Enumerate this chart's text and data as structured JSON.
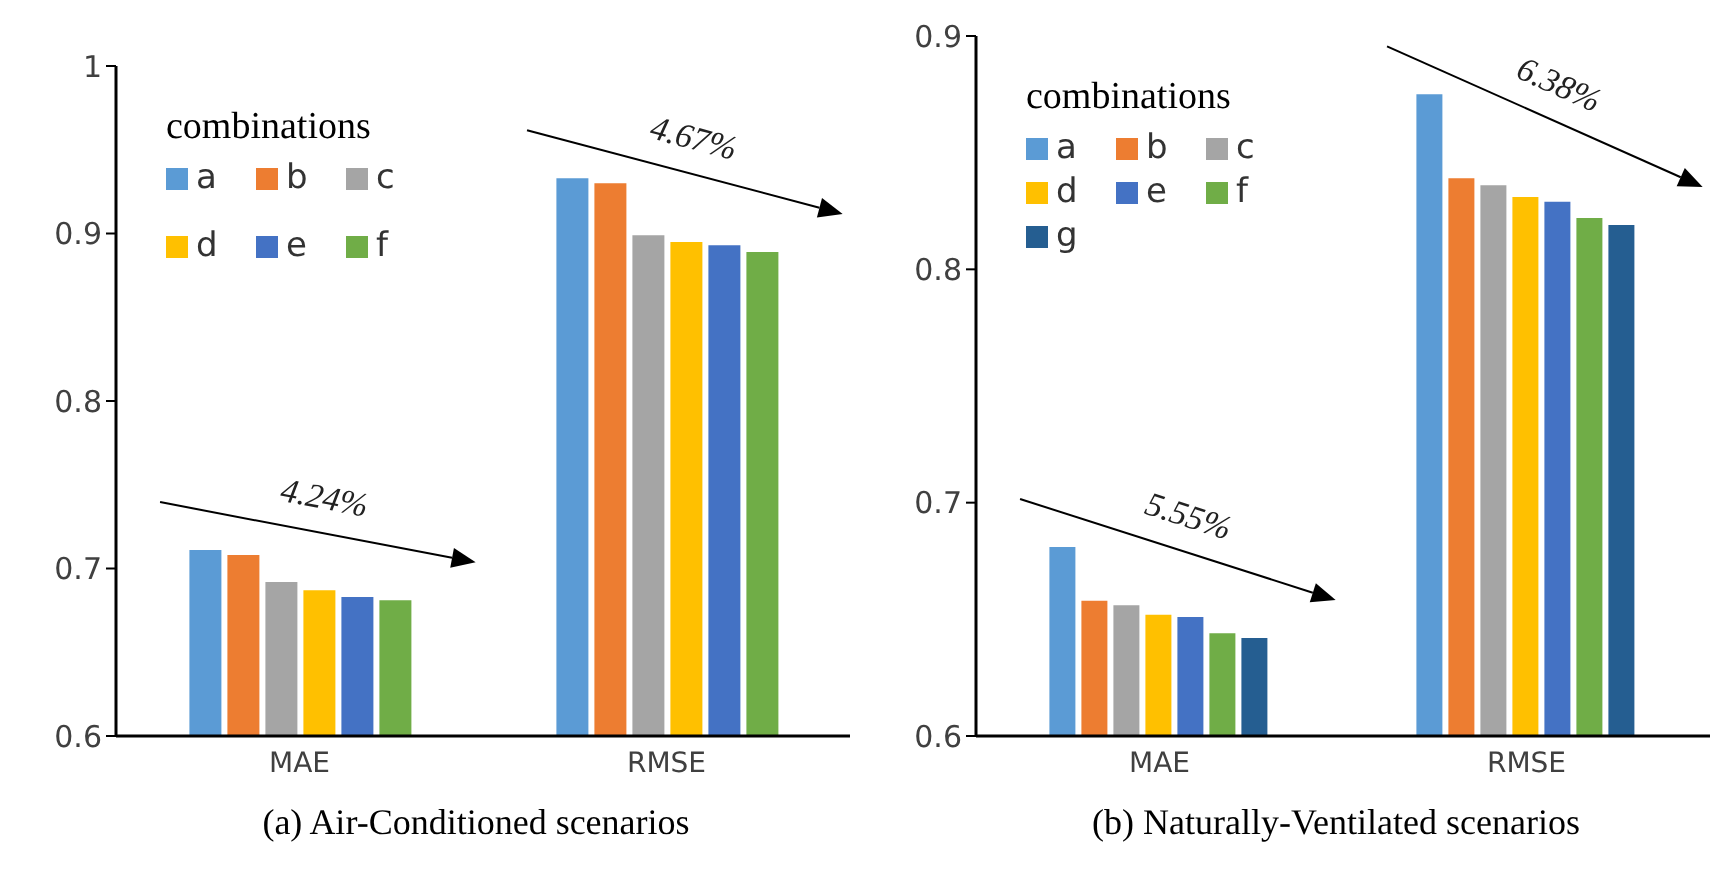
{
  "chart_data": [
    {
      "type": "bar",
      "title": "(a) Air-Conditioned scenarios",
      "categories": [
        "MAE",
        "RMSE"
      ],
      "legend": "top left",
      "legend_title": "combinations",
      "grid": false,
      "ylim": [
        0.6,
        1
      ],
      "yticks": [
        0.6,
        0.7,
        0.8,
        0.9,
        1
      ],
      "annotations": [
        "4.24%",
        "4.67%"
      ],
      "series": [
        {
          "name": "a",
          "color": "#5b9bd5",
          "values": [
            0.711,
            0.933
          ]
        },
        {
          "name": "b",
          "color": "#ed7d31",
          "values": [
            0.708,
            0.93
          ]
        },
        {
          "name": "c",
          "color": "#a5a5a5",
          "values": [
            0.692,
            0.899
          ]
        },
        {
          "name": "d",
          "color": "#ffc000",
          "values": [
            0.687,
            0.895
          ]
        },
        {
          "name": "e",
          "color": "#4472c4",
          "values": [
            0.683,
            0.893
          ]
        },
        {
          "name": "f",
          "color": "#70ad47",
          "values": [
            0.681,
            0.889
          ]
        }
      ]
    },
    {
      "type": "bar",
      "title": "(b) Naturally-Ventilated scenarios",
      "categories": [
        "MAE",
        "RMSE"
      ],
      "legend": "top left",
      "legend_title": "combinations",
      "grid": false,
      "ylim": [
        0.6,
        0.9
      ],
      "yticks": [
        0.6,
        0.7,
        0.8,
        0.9
      ],
      "annotations": [
        "5.55%",
        "6.38%"
      ],
      "series": [
        {
          "name": "a",
          "color": "#5b9bd5",
          "values": [
            0.681,
            0.875
          ]
        },
        {
          "name": "b",
          "color": "#ed7d31",
          "values": [
            0.658,
            0.839
          ]
        },
        {
          "name": "c",
          "color": "#a5a5a5",
          "values": [
            0.656,
            0.836
          ]
        },
        {
          "name": "d",
          "color": "#ffc000",
          "values": [
            0.652,
            0.831
          ]
        },
        {
          "name": "e",
          "color": "#4472c4",
          "values": [
            0.651,
            0.829
          ]
        },
        {
          "name": "f",
          "color": "#70ad47",
          "values": [
            0.644,
            0.822
          ]
        },
        {
          "name": "g",
          "color": "#255e91",
          "values": [
            0.642,
            0.819
          ]
        }
      ]
    }
  ]
}
